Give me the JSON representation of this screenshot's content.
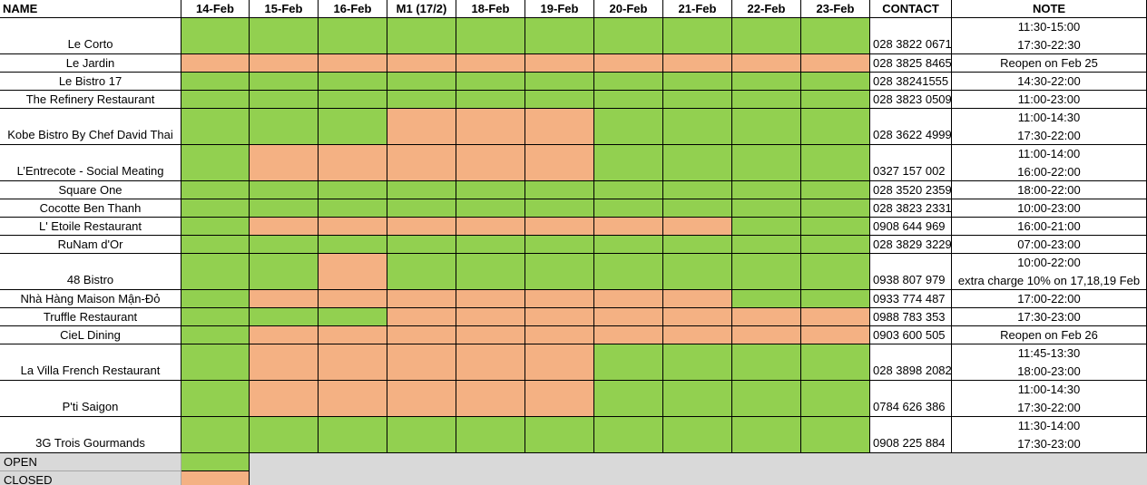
{
  "header": [
    "NAME",
    "14-Feb",
    "15-Feb",
    "16-Feb",
    "M1 (17/2)",
    "18-Feb",
    "19-Feb",
    "20-Feb",
    "21-Feb",
    "22-Feb",
    "23-Feb",
    "CONTACT",
    "NOTE"
  ],
  "rows": [
    {
      "name": "Le Corto",
      "status": [
        "OPEN",
        "OPEN",
        "OPEN",
        "OPEN",
        "OPEN",
        "OPEN",
        "OPEN",
        "OPEN",
        "OPEN",
        "OPEN"
      ],
      "contact": "028 3822 0671",
      "note": [
        "11:30-15:00",
        "17:30-22:30"
      ]
    },
    {
      "name": "Le Jardin",
      "status": [
        "CLOSED",
        "CLOSED",
        "CLOSED",
        "CLOSED",
        "CLOSED",
        "CLOSED",
        "CLOSED",
        "CLOSED",
        "CLOSED",
        "CLOSED"
      ],
      "contact": "028 3825 8465",
      "note": [
        "Reopen on Feb 25"
      ]
    },
    {
      "name": "Le Bistro 17",
      "status": [
        "OPEN",
        "OPEN",
        "OPEN",
        "OPEN",
        "OPEN",
        "OPEN",
        "OPEN",
        "OPEN",
        "OPEN",
        "OPEN"
      ],
      "contact": "028 38241555",
      "note": [
        "14:30-22:00"
      ]
    },
    {
      "name": "The Refinery Restaurant",
      "status": [
        "OPEN",
        "OPEN",
        "OPEN",
        "OPEN",
        "OPEN",
        "OPEN",
        "OPEN",
        "OPEN",
        "OPEN",
        "OPEN"
      ],
      "contact": "028 3823 0509",
      "note": [
        "11:00-23:00"
      ]
    },
    {
      "name": "Kobe Bistro By Chef David Thai",
      "status": [
        "OPEN",
        "OPEN",
        "OPEN",
        "CLOSED",
        "CLOSED",
        "CLOSED",
        "OPEN",
        "OPEN",
        "OPEN",
        "OPEN"
      ],
      "contact": "028 3622 4999",
      "note": [
        "11:00-14:30",
        "17:30-22:00"
      ]
    },
    {
      "name": "L’Entrecote - Social Meating",
      "status": [
        "OPEN",
        "CLOSED",
        "CLOSED",
        "CLOSED",
        "CLOSED",
        "CLOSED",
        "OPEN",
        "OPEN",
        "OPEN",
        "OPEN"
      ],
      "contact": "0327 157 002",
      "note": [
        "11:00-14:00",
        "16:00-22:00"
      ]
    },
    {
      "name": "Square One",
      "status": [
        "OPEN",
        "OPEN",
        "OPEN",
        "OPEN",
        "OPEN",
        "OPEN",
        "OPEN",
        "OPEN",
        "OPEN",
        "OPEN"
      ],
      "contact": "028 3520 2359",
      "note": [
        "18:00-22:00"
      ]
    },
    {
      "name": "Cocotte Ben Thanh",
      "status": [
        "OPEN",
        "OPEN",
        "OPEN",
        "OPEN",
        "OPEN",
        "OPEN",
        "OPEN",
        "OPEN",
        "OPEN",
        "OPEN"
      ],
      "contact": "028 3823 2331",
      "note": [
        "10:00-23:00"
      ]
    },
    {
      "name": "L' Etoile Restaurant",
      "status": [
        "OPEN",
        "CLOSED",
        "CLOSED",
        "CLOSED",
        "CLOSED",
        "CLOSED",
        "CLOSED",
        "CLOSED",
        "OPEN",
        "OPEN"
      ],
      "contact": "0908 644 969",
      "note": [
        "16:00-21:00"
      ]
    },
    {
      "name": "RuNam d'Or",
      "status": [
        "OPEN",
        "OPEN",
        "OPEN",
        "OPEN",
        "OPEN",
        "OPEN",
        "OPEN",
        "OPEN",
        "OPEN",
        "OPEN"
      ],
      "contact": "028 3829 3229",
      "note": [
        "07:00-23:00"
      ]
    },
    {
      "name": "48 Bistro",
      "status": [
        "OPEN",
        "OPEN",
        "CLOSED",
        "OPEN",
        "OPEN",
        "OPEN",
        "OPEN",
        "OPEN",
        "OPEN",
        "OPEN"
      ],
      "contact": "0938 807 979",
      "note": [
        "10:00-22:00",
        "extra charge 10% on 17,18,19 Feb"
      ]
    },
    {
      "name": "Nhà Hàng Maison Mận-Đỏ",
      "status": [
        "OPEN",
        "CLOSED",
        "CLOSED",
        "CLOSED",
        "CLOSED",
        "CLOSED",
        "CLOSED",
        "CLOSED",
        "OPEN",
        "OPEN"
      ],
      "contact": "0933 774 487",
      "note": [
        "17:00-22:00"
      ]
    },
    {
      "name": "Truffle Restaurant",
      "status": [
        "OPEN",
        "OPEN",
        "OPEN",
        "CLOSED",
        "CLOSED",
        "CLOSED",
        "CLOSED",
        "CLOSED",
        "CLOSED",
        "CLOSED"
      ],
      "contact": "0988 783 353",
      "note": [
        "17:30-23:00"
      ]
    },
    {
      "name": "CieL Dining",
      "status": [
        "OPEN",
        "CLOSED",
        "CLOSED",
        "CLOSED",
        "CLOSED",
        "CLOSED",
        "CLOSED",
        "CLOSED",
        "CLOSED",
        "CLOSED"
      ],
      "contact": "0903 600 505",
      "note": [
        "Reopen on Feb 26"
      ]
    },
    {
      "name": "La Villa French Restaurant",
      "status": [
        "OPEN",
        "CLOSED",
        "CLOSED",
        "CLOSED",
        "CLOSED",
        "CLOSED",
        "OPEN",
        "OPEN",
        "OPEN",
        "OPEN"
      ],
      "contact": "028 3898 2082",
      "note": [
        "11:45-13:30",
        "18:00-23:00"
      ]
    },
    {
      "name": "P'ti Saigon",
      "status": [
        "OPEN",
        "CLOSED",
        "CLOSED",
        "CLOSED",
        "CLOSED",
        "CLOSED",
        "OPEN",
        "OPEN",
        "OPEN",
        "OPEN"
      ],
      "contact": "0784 626 386",
      "note": [
        "11:00-14:30",
        "17:30-22:00"
      ]
    },
    {
      "name": "3G Trois Gourmands",
      "status": [
        "OPEN",
        "OPEN",
        "OPEN",
        "OPEN",
        "OPEN",
        "OPEN",
        "OPEN",
        "OPEN",
        "OPEN",
        "OPEN"
      ],
      "contact": "0908 225 884",
      "note": [
        "11:30-14:00",
        "17:30-23:00"
      ]
    }
  ],
  "legend": [
    "OPEN",
    "CLOSED"
  ]
}
